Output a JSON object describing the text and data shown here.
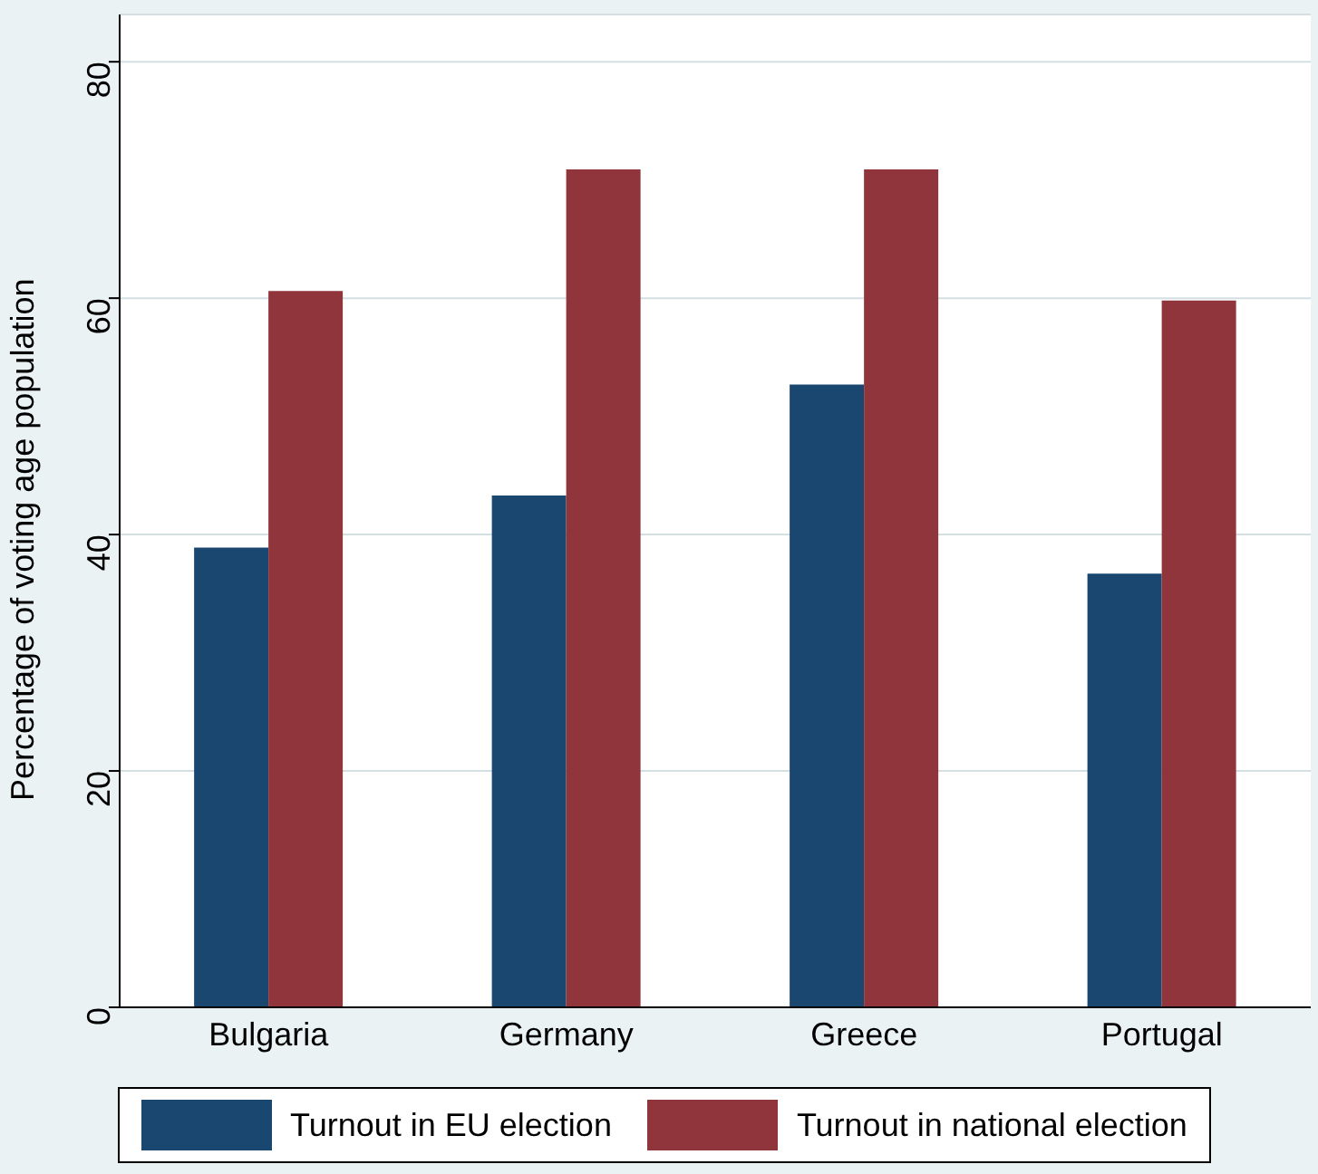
{
  "chart_data": {
    "type": "bar",
    "ylabel": "Percentage of voting age population",
    "categories": [
      "Bulgaria",
      "Germany",
      "Greece",
      "Portugal"
    ],
    "series": [
      {
        "name": "Turnout in EU election",
        "color": "#1a476f",
        "values": [
          38.9,
          43.3,
          52.7,
          36.7
        ]
      },
      {
        "name": "Turnout in national election",
        "color": "#90353b",
        "values": [
          60.6,
          70.9,
          70.9,
          59.8
        ]
      }
    ],
    "ylim": [
      0,
      84
    ],
    "yticks": [
      0,
      20,
      40,
      60,
      80
    ],
    "grid": "y",
    "legend": "bottom"
  }
}
